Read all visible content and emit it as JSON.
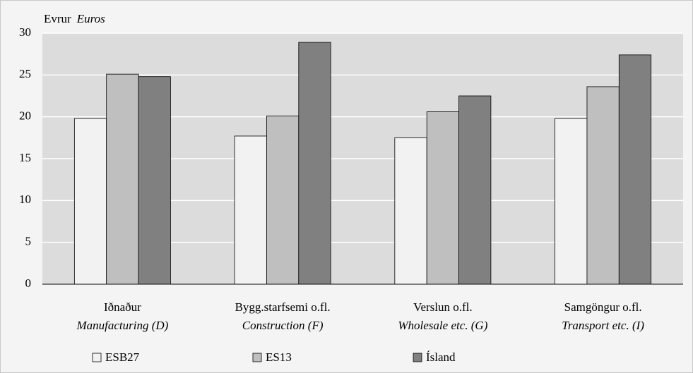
{
  "chart_data": {
    "type": "bar",
    "y_label": "Evrur",
    "y_label_en": "Euros",
    "categories": [
      "Iðnaður",
      "Bygg.starfsemi o.fl.",
      "Verslun o.fl.",
      "Samgöngur o.fl."
    ],
    "categories_en": [
      "Manufacturing (D)",
      "Construction (F)",
      "Wholesale etc. (G)",
      "Transport etc. (I)"
    ],
    "series": [
      {
        "name": "ESB27",
        "color": "#f2f2f2",
        "values": [
          19.8,
          17.7,
          17.5,
          19.8
        ]
      },
      {
        "name": "ES13",
        "color": "#bfbfbf",
        "values": [
          25.1,
          20.1,
          20.6,
          23.6
        ]
      },
      {
        "name": "Ísland",
        "color": "#808080",
        "values": [
          24.8,
          28.9,
          22.5,
          27.4
        ]
      }
    ],
    "ylim": [
      0,
      30
    ],
    "yticks": [
      0,
      5,
      10,
      15,
      20,
      25,
      30
    ],
    "grid": true,
    "legend": "bottom"
  }
}
